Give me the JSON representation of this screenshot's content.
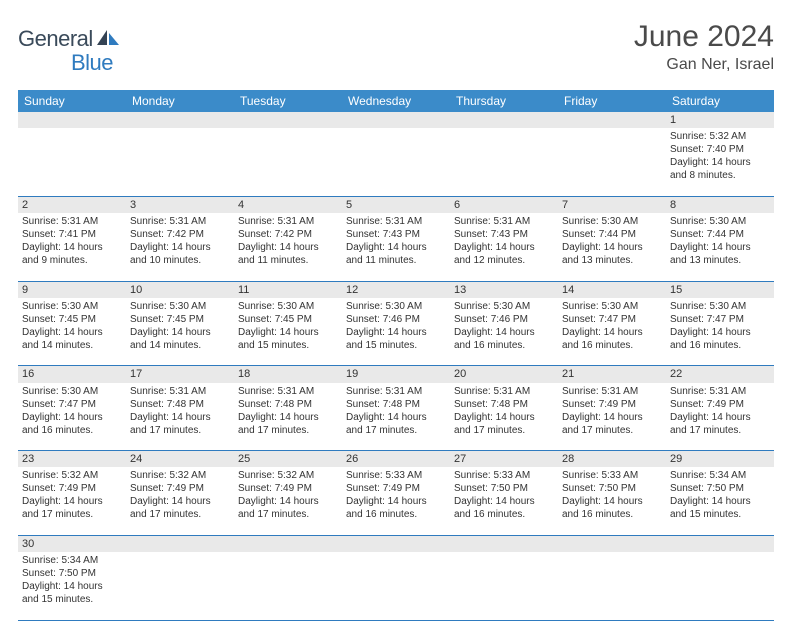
{
  "brand": {
    "general": "General",
    "blue": "Blue"
  },
  "title": "June 2024",
  "location": "Gan Ner, Israel",
  "colors": {
    "header_bg": "#3b8bc9",
    "header_text": "#ffffff",
    "daynum_bg": "#e9e9e9",
    "border": "#2f7bbf",
    "logo_dark": "#3a4a5a",
    "logo_blue": "#2f7bbf"
  },
  "weekdays": [
    "Sunday",
    "Monday",
    "Tuesday",
    "Wednesday",
    "Thursday",
    "Friday",
    "Saturday"
  ],
  "weeks": [
    [
      null,
      null,
      null,
      null,
      null,
      null,
      {
        "n": "1",
        "sr": "Sunrise: 5:32 AM",
        "ss": "Sunset: 7:40 PM",
        "d1": "Daylight: 14 hours",
        "d2": "and 8 minutes."
      }
    ],
    [
      {
        "n": "2",
        "sr": "Sunrise: 5:31 AM",
        "ss": "Sunset: 7:41 PM",
        "d1": "Daylight: 14 hours",
        "d2": "and 9 minutes."
      },
      {
        "n": "3",
        "sr": "Sunrise: 5:31 AM",
        "ss": "Sunset: 7:42 PM",
        "d1": "Daylight: 14 hours",
        "d2": "and 10 minutes."
      },
      {
        "n": "4",
        "sr": "Sunrise: 5:31 AM",
        "ss": "Sunset: 7:42 PM",
        "d1": "Daylight: 14 hours",
        "d2": "and 11 minutes."
      },
      {
        "n": "5",
        "sr": "Sunrise: 5:31 AM",
        "ss": "Sunset: 7:43 PM",
        "d1": "Daylight: 14 hours",
        "d2": "and 11 minutes."
      },
      {
        "n": "6",
        "sr": "Sunrise: 5:31 AM",
        "ss": "Sunset: 7:43 PM",
        "d1": "Daylight: 14 hours",
        "d2": "and 12 minutes."
      },
      {
        "n": "7",
        "sr": "Sunrise: 5:30 AM",
        "ss": "Sunset: 7:44 PM",
        "d1": "Daylight: 14 hours",
        "d2": "and 13 minutes."
      },
      {
        "n": "8",
        "sr": "Sunrise: 5:30 AM",
        "ss": "Sunset: 7:44 PM",
        "d1": "Daylight: 14 hours",
        "d2": "and 13 minutes."
      }
    ],
    [
      {
        "n": "9",
        "sr": "Sunrise: 5:30 AM",
        "ss": "Sunset: 7:45 PM",
        "d1": "Daylight: 14 hours",
        "d2": "and 14 minutes."
      },
      {
        "n": "10",
        "sr": "Sunrise: 5:30 AM",
        "ss": "Sunset: 7:45 PM",
        "d1": "Daylight: 14 hours",
        "d2": "and 14 minutes."
      },
      {
        "n": "11",
        "sr": "Sunrise: 5:30 AM",
        "ss": "Sunset: 7:45 PM",
        "d1": "Daylight: 14 hours",
        "d2": "and 15 minutes."
      },
      {
        "n": "12",
        "sr": "Sunrise: 5:30 AM",
        "ss": "Sunset: 7:46 PM",
        "d1": "Daylight: 14 hours",
        "d2": "and 15 minutes."
      },
      {
        "n": "13",
        "sr": "Sunrise: 5:30 AM",
        "ss": "Sunset: 7:46 PM",
        "d1": "Daylight: 14 hours",
        "d2": "and 16 minutes."
      },
      {
        "n": "14",
        "sr": "Sunrise: 5:30 AM",
        "ss": "Sunset: 7:47 PM",
        "d1": "Daylight: 14 hours",
        "d2": "and 16 minutes."
      },
      {
        "n": "15",
        "sr": "Sunrise: 5:30 AM",
        "ss": "Sunset: 7:47 PM",
        "d1": "Daylight: 14 hours",
        "d2": "and 16 minutes."
      }
    ],
    [
      {
        "n": "16",
        "sr": "Sunrise: 5:30 AM",
        "ss": "Sunset: 7:47 PM",
        "d1": "Daylight: 14 hours",
        "d2": "and 16 minutes."
      },
      {
        "n": "17",
        "sr": "Sunrise: 5:31 AM",
        "ss": "Sunset: 7:48 PM",
        "d1": "Daylight: 14 hours",
        "d2": "and 17 minutes."
      },
      {
        "n": "18",
        "sr": "Sunrise: 5:31 AM",
        "ss": "Sunset: 7:48 PM",
        "d1": "Daylight: 14 hours",
        "d2": "and 17 minutes."
      },
      {
        "n": "19",
        "sr": "Sunrise: 5:31 AM",
        "ss": "Sunset: 7:48 PM",
        "d1": "Daylight: 14 hours",
        "d2": "and 17 minutes."
      },
      {
        "n": "20",
        "sr": "Sunrise: 5:31 AM",
        "ss": "Sunset: 7:48 PM",
        "d1": "Daylight: 14 hours",
        "d2": "and 17 minutes."
      },
      {
        "n": "21",
        "sr": "Sunrise: 5:31 AM",
        "ss": "Sunset: 7:49 PM",
        "d1": "Daylight: 14 hours",
        "d2": "and 17 minutes."
      },
      {
        "n": "22",
        "sr": "Sunrise: 5:31 AM",
        "ss": "Sunset: 7:49 PM",
        "d1": "Daylight: 14 hours",
        "d2": "and 17 minutes."
      }
    ],
    [
      {
        "n": "23",
        "sr": "Sunrise: 5:32 AM",
        "ss": "Sunset: 7:49 PM",
        "d1": "Daylight: 14 hours",
        "d2": "and 17 minutes."
      },
      {
        "n": "24",
        "sr": "Sunrise: 5:32 AM",
        "ss": "Sunset: 7:49 PM",
        "d1": "Daylight: 14 hours",
        "d2": "and 17 minutes."
      },
      {
        "n": "25",
        "sr": "Sunrise: 5:32 AM",
        "ss": "Sunset: 7:49 PM",
        "d1": "Daylight: 14 hours",
        "d2": "and 17 minutes."
      },
      {
        "n": "26",
        "sr": "Sunrise: 5:33 AM",
        "ss": "Sunset: 7:49 PM",
        "d1": "Daylight: 14 hours",
        "d2": "and 16 minutes."
      },
      {
        "n": "27",
        "sr": "Sunrise: 5:33 AM",
        "ss": "Sunset: 7:50 PM",
        "d1": "Daylight: 14 hours",
        "d2": "and 16 minutes."
      },
      {
        "n": "28",
        "sr": "Sunrise: 5:33 AM",
        "ss": "Sunset: 7:50 PM",
        "d1": "Daylight: 14 hours",
        "d2": "and 16 minutes."
      },
      {
        "n": "29",
        "sr": "Sunrise: 5:34 AM",
        "ss": "Sunset: 7:50 PM",
        "d1": "Daylight: 14 hours",
        "d2": "and 15 minutes."
      }
    ],
    [
      {
        "n": "30",
        "sr": "Sunrise: 5:34 AM",
        "ss": "Sunset: 7:50 PM",
        "d1": "Daylight: 14 hours",
        "d2": "and 15 minutes."
      },
      null,
      null,
      null,
      null,
      null,
      null
    ]
  ]
}
